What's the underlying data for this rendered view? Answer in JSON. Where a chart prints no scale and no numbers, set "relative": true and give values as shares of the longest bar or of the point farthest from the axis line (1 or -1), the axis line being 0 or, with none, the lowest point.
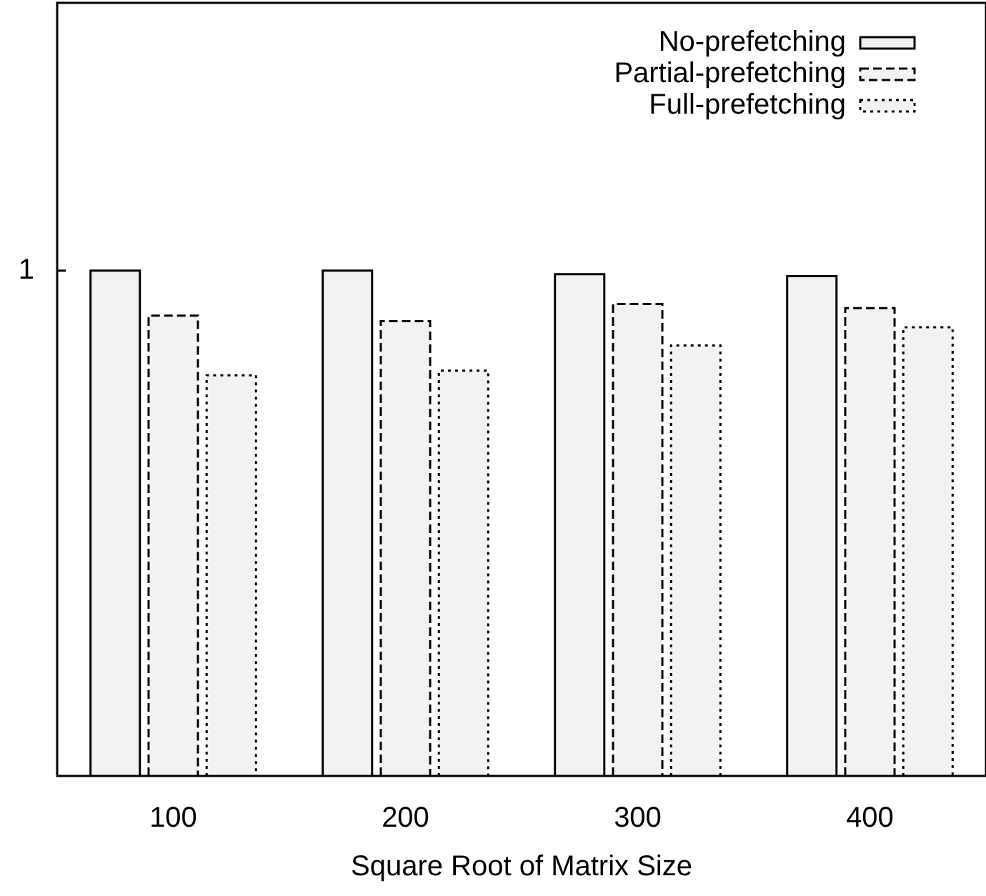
{
  "chart_data": {
    "type": "bar",
    "relative": true,
    "xlabel": "Square Root of Matrix Size",
    "categories": [
      "100",
      "200",
      "300",
      "400"
    ],
    "series": [
      {
        "name": "No-prefetching",
        "color": "#f2f2f2",
        "line_style": "solid",
        "values": [
          1,
          1,
          0.993,
          0.989
        ]
      },
      {
        "name": "Partial-prefetching",
        "color": "#f2f2f2",
        "line_style": "dashed",
        "values": [
          0.911,
          0.9,
          0.934,
          0.926
        ]
      },
      {
        "name": "Full-prefetching",
        "color": "#f2f2f2",
        "line_style": "dotted",
        "values": [
          0.793,
          0.802,
          0.852,
          0.888
        ]
      }
    ],
    "annotations": [
      "1"
    ],
    "legend": "top right",
    "grid": false
  }
}
